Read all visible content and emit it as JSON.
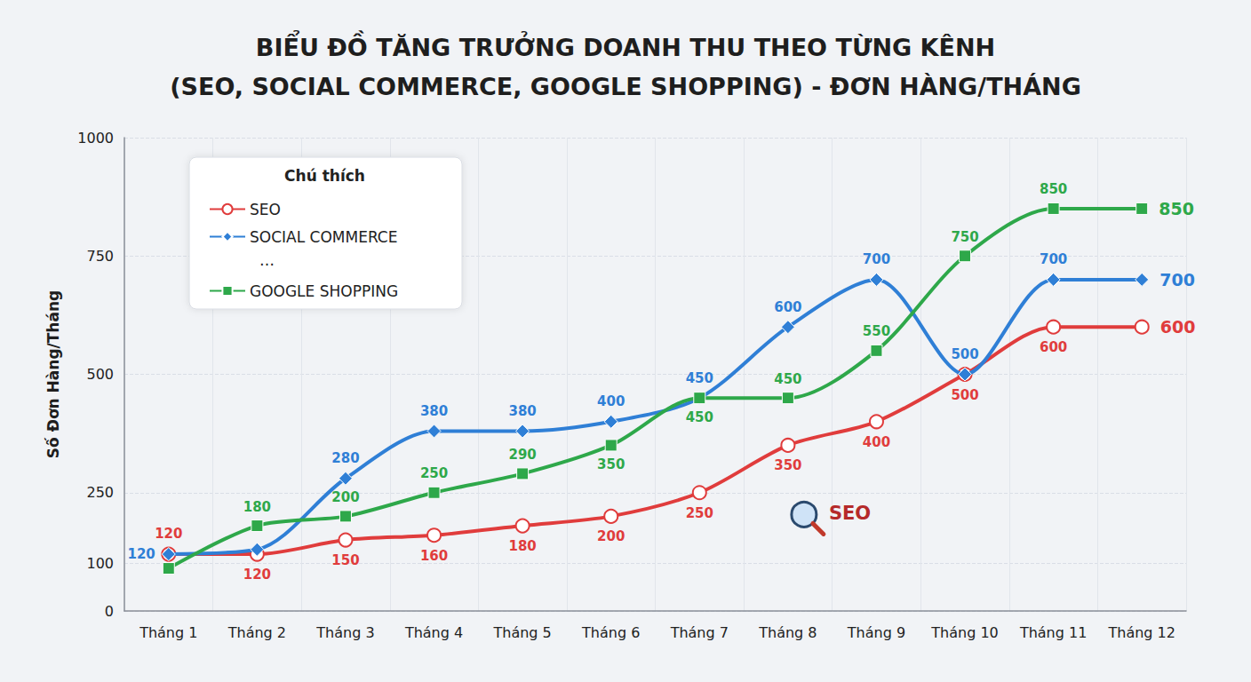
{
  "chart_data": {
    "type": "line",
    "title": "BIỂU ĐỒ TĂNG TRƯỞNG DOANH THU THEO TỪNG KÊNH\n(SEO, SOCIAL COMMERCE, GOOGLE SHOPPING) - ĐƠN HÀNG/THÁNG",
    "y_label": "Số Đơn Hàng/Tháng",
    "categories": [
      "Tháng 1",
      "Tháng 2",
      "Tháng 3",
      "Tháng 4",
      "Tháng 5",
      "Tháng 6",
      "Tháng 7",
      "Tháng 8",
      "Tháng 9",
      "Tháng 10",
      "Tháng 11",
      "Tháng 12"
    ],
    "series": [
      {
        "name": "SEO",
        "color": "#e03c3c",
        "marker": "circle",
        "line_style": "solid",
        "values": [
          120,
          120,
          150,
          160,
          180,
          200,
          250,
          350,
          400,
          500,
          600,
          600
        ]
      },
      {
        "name": "SOCIAL COMMERCE",
        "color": "#2f7fd6",
        "marker": "diamond",
        "line_style": "solid",
        "values": [
          120,
          130,
          280,
          380,
          380,
          400,
          450,
          600,
          700,
          500,
          700,
          700
        ],
        "value_labels": [
          "120",
          null,
          "280",
          "380",
          "380",
          "400",
          "450",
          "600",
          "700",
          "500",
          "700",
          "700"
        ]
      },
      {
        "name": "GOOGLE SHOPPING",
        "color": "#2ea84a",
        "marker": "square",
        "line_style": "solid",
        "values": [
          90,
          180,
          200,
          250,
          290,
          350,
          450,
          450,
          550,
          750,
          850,
          850
        ],
        "value_labels": [
          null,
          "180",
          "200",
          "250",
          "290",
          "350",
          "450",
          "450",
          "550",
          "750",
          "850",
          "850"
        ]
      }
    ],
    "ylim": [
      0,
      1000
    ],
    "yticks": [
      0,
      100,
      250,
      500,
      750,
      1000
    ],
    "grid": true,
    "data_labels": true,
    "legend": "upper left",
    "legend_title": "Chú thích",
    "annotations": [
      "…",
      "SEO"
    ]
  }
}
